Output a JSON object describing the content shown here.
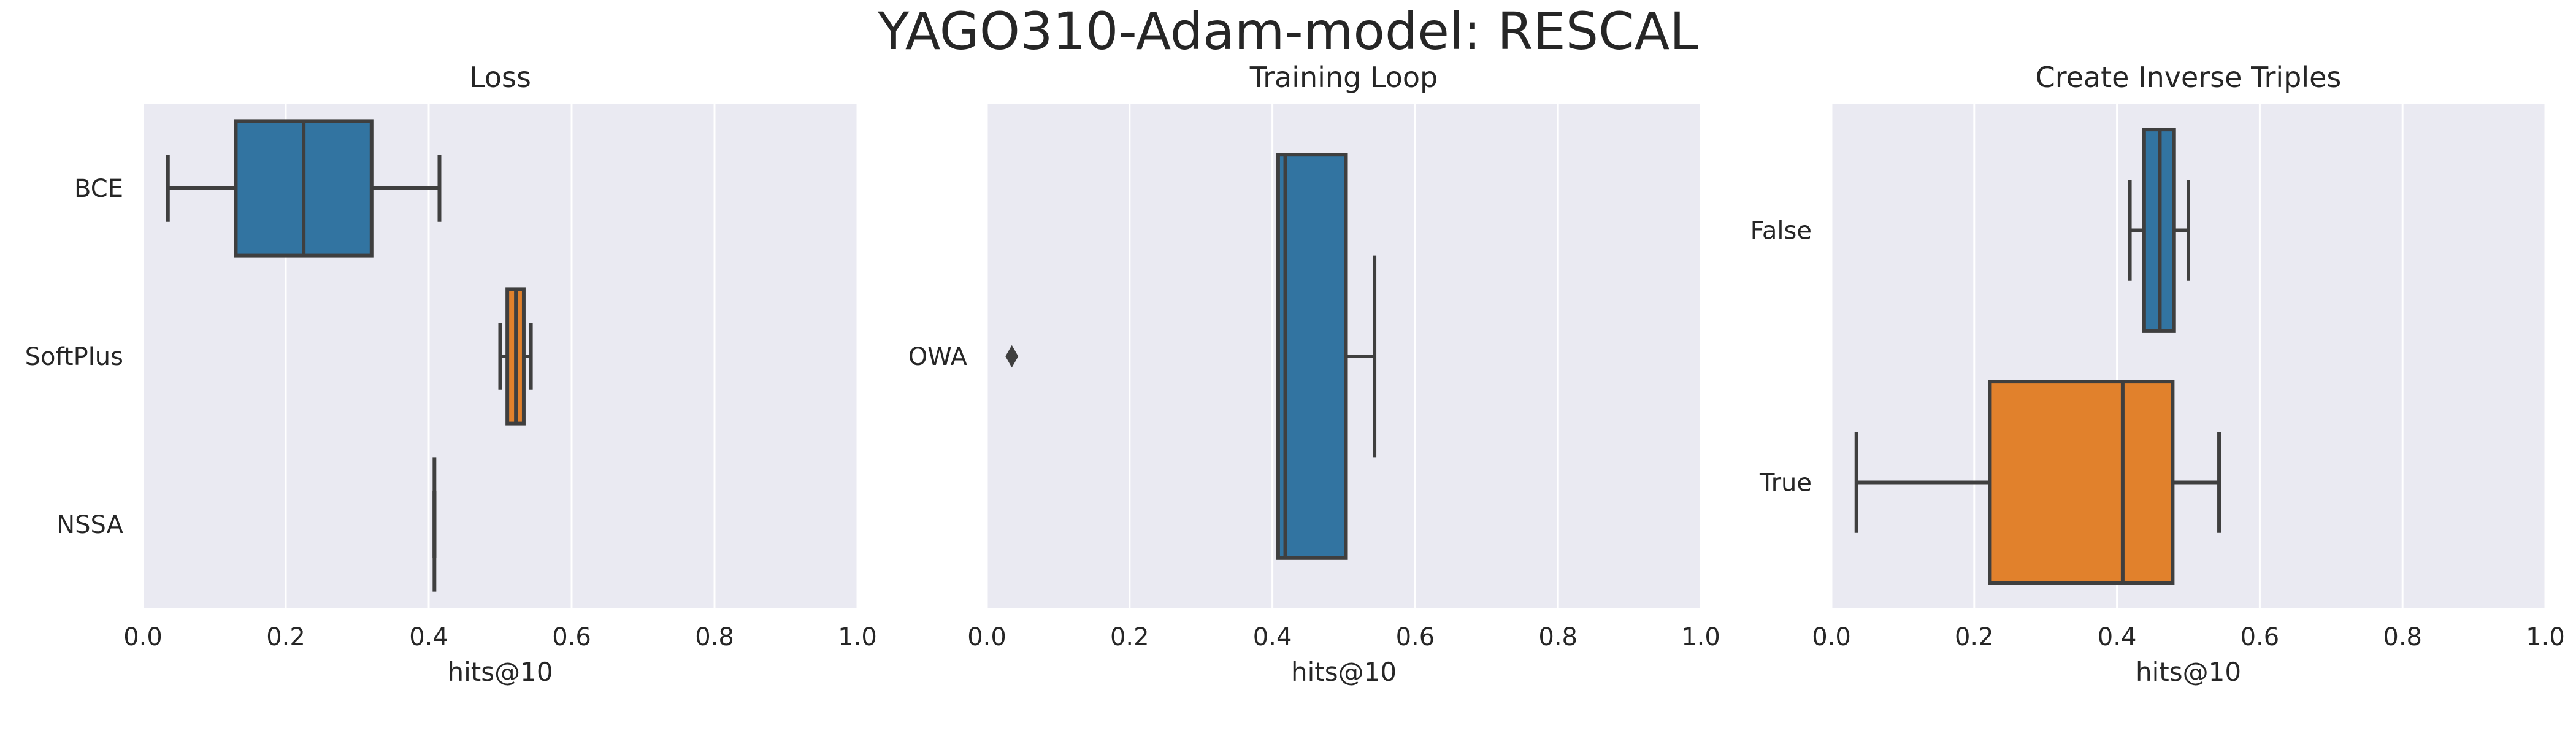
{
  "title": "YAGO310-Adam-model: RESCAL",
  "colors": {
    "background": "#eaeaf2",
    "grid": "#ffffff",
    "box_line": "#3f3f3f",
    "blue": "#3274a1",
    "orange": "#e1812c"
  },
  "chart_data": [
    {
      "type": "box",
      "orientation": "horizontal",
      "title": "Loss",
      "xlabel": "hits@10",
      "xlim": [
        0,
        1
      ],
      "xticks": [
        "0.0",
        "0.2",
        "0.4",
        "0.6",
        "0.8",
        "1.0"
      ],
      "grid": true,
      "categories": [
        "BCE",
        "SoftPlus",
        "NSSA"
      ],
      "boxes": [
        {
          "min": 0.035,
          "q1": 0.13,
          "median": 0.225,
          "q3": 0.32,
          "max": 0.415,
          "color": "#3274a1",
          "outliers": []
        },
        {
          "min": 0.5,
          "q1": 0.51,
          "median": 0.522,
          "q3": 0.533,
          "max": 0.543,
          "color": "#e1812c",
          "outliers": []
        },
        {
          "min": 0.408,
          "q1": 0.408,
          "median": 0.408,
          "q3": 0.408,
          "max": 0.408,
          "color": "#3a923a",
          "outliers": []
        }
      ]
    },
    {
      "type": "box",
      "orientation": "horizontal",
      "title": "Training Loop",
      "xlabel": "hits@10",
      "xlim": [
        0,
        1
      ],
      "xticks": [
        "0.0",
        "0.2",
        "0.4",
        "0.6",
        "0.8",
        "1.0"
      ],
      "grid": true,
      "categories": [
        "OWA"
      ],
      "boxes": [
        {
          "min": 0.408,
          "q1": 0.408,
          "median": 0.418,
          "q3": 0.503,
          "max": 0.543,
          "color": "#3274a1",
          "outliers": [
            0.035
          ]
        }
      ]
    },
    {
      "type": "box",
      "orientation": "horizontal",
      "title": "Create Inverse Triples",
      "xlabel": "hits@10",
      "xlim": [
        0,
        1
      ],
      "xticks": [
        "0.0",
        "0.2",
        "0.4",
        "0.6",
        "0.8",
        "1.0"
      ],
      "grid": true,
      "categories": [
        "False",
        "True"
      ],
      "boxes": [
        {
          "min": 0.418,
          "q1": 0.438,
          "median": 0.46,
          "q3": 0.48,
          "max": 0.5,
          "color": "#3274a1",
          "outliers": []
        },
        {
          "min": 0.035,
          "q1": 0.222,
          "median": 0.408,
          "q3": 0.478,
          "max": 0.543,
          "color": "#e1812c",
          "outliers": []
        }
      ]
    }
  ]
}
